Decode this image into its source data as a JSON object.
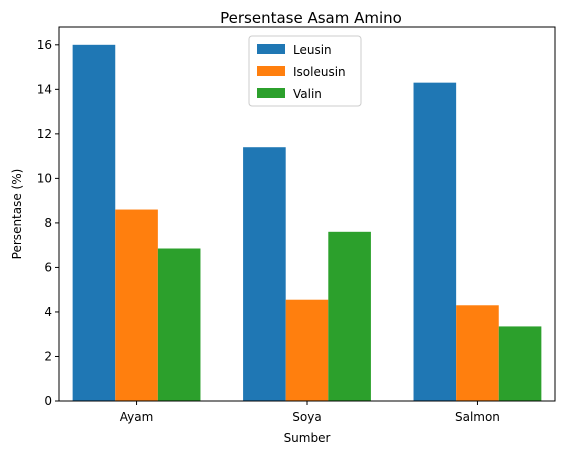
{
  "chart_data": {
    "type": "bar",
    "title": "Persentase Asam Amino",
    "xlabel": "Sumber",
    "ylabel": "Persentase (%)",
    "categories": [
      "Ayam",
      "Soya",
      "Salmon"
    ],
    "series": [
      {
        "name": "Leusin",
        "color": "#1f77b4",
        "values": [
          16.0,
          11.4,
          14.3
        ]
      },
      {
        "name": "Isoleusin",
        "color": "#ff7f0e",
        "values": [
          8.6,
          4.55,
          4.3
        ]
      },
      {
        "name": "Valin",
        "color": "#2ca02c",
        "values": [
          6.85,
          7.6,
          3.35
        ]
      }
    ],
    "yticks": [
      "0",
      "2",
      "4",
      "6",
      "8",
      "10",
      "12",
      "14",
      "16"
    ],
    "ylim": [
      0,
      16.8
    ],
    "grid": false,
    "legend_position": "upper center"
  }
}
